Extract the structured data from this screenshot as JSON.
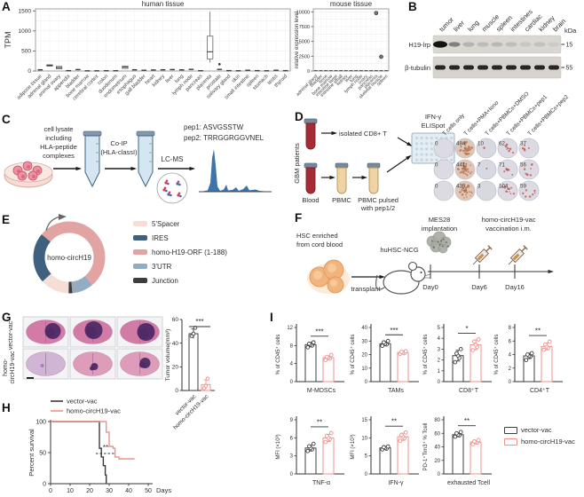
{
  "colors": {
    "salmon": "#F0908C",
    "black": "#3A3A3A",
    "ink": "#2E2E2E"
  },
  "panels": {
    "A": "A",
    "B": "B",
    "C": "C",
    "D": "D",
    "E": "E",
    "F": "F",
    "G": "G",
    "H": "H",
    "I": "I"
  },
  "panelA": {
    "human": {
      "title": "human tissue",
      "ylabel": "TPM",
      "ylim": [
        0,
        1550
      ],
      "yticks": [
        0,
        500,
        1000,
        1500
      ],
      "categories": [
        "adipose tissue",
        "adrenal gland",
        "animal ovary",
        "appendix",
        "bladder",
        "bone marrow",
        "cerebral cortex",
        "colon",
        "duodenum",
        "endometrium",
        "esophagus",
        "gall bladder",
        "heart",
        "kidney",
        "liver",
        "lung",
        "lymph node",
        "pancreas",
        "placenta",
        "prostate",
        "salivary gland",
        "skin",
        "small intestine",
        "spleen",
        "stomach",
        "testis",
        "thyroid"
      ],
      "medians": [
        30,
        140,
        85,
        8,
        35,
        4,
        4,
        6,
        6,
        95,
        30,
        18,
        25,
        30,
        35,
        28,
        40,
        6,
        480,
        40,
        8,
        5,
        18,
        8,
        5,
        18,
        8
      ],
      "boxes": {
        "adrenal gland": {
          "q1": 120,
          "q3": 155,
          "med": 140
        },
        "animal ovary": {
          "q1": 55,
          "q3": 115,
          "med": 85
        },
        "endometrium": {
          "q1": 65,
          "q3": 125,
          "med": 95
        },
        "placenta": {
          "q1": 300,
          "q3": 870,
          "med": 480,
          "wlow": 210,
          "whigh": 1480
        }
      },
      "outliers": {
        "prostate": 170
      }
    },
    "mouse": {
      "title": "mouse tissue",
      "ylabel": "relative expression level",
      "ylim": [
        0,
        10500
      ],
      "yticks": [
        0,
        2500,
        5000,
        7500,
        10000
      ],
      "categories": [
        "adrenal gland",
        "bladder",
        "bone",
        "bone marrow",
        "intestine large",
        "intestine small",
        "kidney",
        "liver",
        "lung",
        "lymph node",
        "ovary",
        "pancreas",
        "placenta",
        "skeletal muscle",
        "spleen"
      ],
      "baseline": 60,
      "dots": {
        "placenta": 9800,
        "skeletal muscle": 2400
      }
    }
  },
  "panelB": {
    "lanes": [
      "tumor",
      "liver",
      "lung",
      "muscle",
      "spleen",
      "intestines",
      "cardiac",
      "kidney",
      "brain"
    ],
    "rows": [
      {
        "name": "H19-lrp",
        "marker": "15"
      },
      {
        "name": "β-tubulin",
        "marker": "55"
      }
    ],
    "unit": "kDa",
    "h19_intensity": [
      1,
      0.45,
      0.18,
      0.14,
      0.15,
      0.12,
      0.08,
      0.1,
      0.06
    ]
  },
  "panelC": {
    "lysate_lines": [
      "cell lysate",
      "including",
      "HLA-peptide",
      "complexes"
    ],
    "coip_lines": [
      "Co-IP",
      "(HLA-classI)"
    ],
    "lcms": "LC-MS",
    "pep1": "pep1: ASVGSSTW",
    "pep2": "pep2: TRRGGRGGVNEL"
  },
  "panelD": {
    "side_label": "GBM patients",
    "blood": "Blood",
    "cd8": "isolated CD8+ T",
    "elispot_lines": [
      "IFN-γ",
      "ELISpot"
    ],
    "pbmc": "PBMC",
    "pbmc_pulsed_lines": [
      "PBMC pulsed",
      "with pep1/2"
    ],
    "well_columns": [
      "T cells only",
      "T cells+PMA+Iono",
      "T cells+PBMCs+DMSO",
      "T cells+PBMCs+pep1",
      "T cells+PBMCs+pep2"
    ],
    "well_counts": [
      [
        0,
        484,
        10,
        62,
        37
      ],
      [
        0,
        441,
        7,
        71,
        56
      ],
      [
        0,
        439,
        3,
        104,
        59
      ]
    ]
  },
  "panelE": {
    "center": "homo-circH19",
    "segments": [
      {
        "label": "5'Spacer",
        "color": "#F6DDD5",
        "start": 181,
        "end": 228
      },
      {
        "label": "IRES",
        "color": "#40617E",
        "start": 228,
        "end": 310
      },
      {
        "label": "homo-H19-ORF (1-188)",
        "color": "#E2A3A3",
        "start": 310,
        "end": 500
      },
      {
        "label": "3'UTR",
        "color": "#93ACC1",
        "start": 140,
        "end": 175
      },
      {
        "label": "Junction",
        "color": "#3D3D3D",
        "start": 175,
        "end": 181
      }
    ]
  },
  "panelF": {
    "hsc_lines": [
      "HSC enriched",
      "from cord blood"
    ],
    "transplant": "transplant",
    "mouse": "huHSC-NCG",
    "mes28_lines": [
      "MES28",
      "implantation"
    ],
    "vac_lines": [
      "homo-circH19-vac",
      "vaccination i.m."
    ],
    "days": [
      "Day0",
      "Day6",
      "Day16"
    ]
  },
  "panelG": {
    "row_labels": [
      "vector-vac",
      "homo-",
      "circH19-vac"
    ],
    "bar": {
      "ylabel": "Tumor volume(mm³)",
      "ylim": [
        0,
        60
      ],
      "yticks": [
        0,
        20,
        40,
        60
      ],
      "sig": "***",
      "groups": [
        {
          "name": "vector-vac",
          "mean": 48,
          "sd": 4,
          "dots": [
            46,
            48,
            53
          ]
        },
        {
          "name": "homo-circH19-vac",
          "mean": 5,
          "sd": 4,
          "dots": [
            2,
            4,
            10
          ]
        }
      ]
    }
  },
  "panelH": {
    "legend": [
      "vector-vac",
      "homo-circH19-vac"
    ],
    "ylabel": "Percent survival",
    "xlabel": "Days",
    "yticks": [
      0,
      50,
      100
    ],
    "xticks": [
      0,
      10,
      20,
      30,
      40,
      50
    ],
    "sig": "**",
    "series": [
      {
        "name": "vector-vac",
        "points": [
          [
            0,
            100
          ],
          [
            25,
            100
          ],
          [
            25,
            57
          ],
          [
            26,
            57
          ],
          [
            26,
            43
          ],
          [
            27,
            43
          ],
          [
            27,
            29
          ],
          [
            28,
            29
          ],
          [
            28,
            14
          ],
          [
            28.5,
            14
          ],
          [
            28.5,
            0
          ]
        ]
      },
      {
        "name": "homo-circH19-vac",
        "points": [
          [
            0,
            100
          ],
          [
            28.5,
            100
          ],
          [
            28.5,
            83
          ],
          [
            30,
            83
          ],
          [
            30,
            60
          ],
          [
            32,
            60
          ],
          [
            32,
            57
          ],
          [
            33,
            57
          ],
          [
            33,
            43
          ],
          [
            35,
            43
          ],
          [
            35,
            40
          ],
          [
            43,
            40
          ]
        ]
      }
    ]
  },
  "panelI": {
    "legend": [
      "vector-vac",
      "homo-circH19-vac"
    ],
    "charts": [
      {
        "xlabel": "M-MDSCs",
        "ylabel": "% of CD45⁺ cells",
        "ylim": [
          0,
          12
        ],
        "yticks": [
          0,
          4,
          8,
          12
        ],
        "sig": "***",
        "vector": {
          "mean": 8.2,
          "sd": 0.5,
          "dots": [
            7.6,
            8.0,
            8.2,
            8.4,
            8.7
          ]
        },
        "homo": {
          "mean": 5.3,
          "sd": 0.4,
          "dots": [
            4.8,
            5.1,
            5.3,
            5.5,
            5.9
          ]
        }
      },
      {
        "xlabel": "TAMs",
        "ylabel": "% of CD45⁺ cells",
        "ylim": [
          0,
          40
        ],
        "yticks": [
          0,
          10,
          20,
          30,
          40
        ],
        "sig": "***",
        "vector": {
          "mean": 28,
          "sd": 1.5,
          "dots": [
            26.5,
            27.5,
            28,
            29,
            30
          ]
        },
        "homo": {
          "mean": 21.5,
          "sd": 1,
          "dots": [
            20.5,
            21,
            21.5,
            22,
            22.5
          ]
        }
      },
      {
        "xlabel": "CD8⁺T",
        "ylabel": "% of CD45⁺ cells",
        "ylim": [
          0,
          5
        ],
        "yticks": [
          0,
          1,
          2,
          3,
          4,
          5
        ],
        "sig": "*",
        "vector": {
          "mean": 2.4,
          "sd": 0.5,
          "dots": [
            1.8,
            2.2,
            2.4,
            2.6,
            3.0
          ]
        },
        "homo": {
          "mean": 3.4,
          "sd": 0.45,
          "dots": [
            2.9,
            3.2,
            3.4,
            3.7,
            3.9
          ]
        }
      },
      {
        "xlabel": "CD4⁺T",
        "ylabel": "% of CD45⁺ cells",
        "ylim": [
          0,
          8
        ],
        "yticks": [
          0,
          2,
          4,
          6,
          8
        ],
        "sig": "**",
        "vector": {
          "mean": 3.8,
          "sd": 0.4,
          "dots": [
            3.2,
            3.7,
            3.8,
            4.0,
            4.2
          ]
        },
        "homo": {
          "mean": 5.2,
          "sd": 0.5,
          "dots": [
            4.7,
            5.0,
            5.2,
            5.5,
            5.9
          ]
        }
      },
      {
        "xlabel": "TNF-α",
        "ylabel": "MFI (×10³)",
        "ylim": [
          0,
          9
        ],
        "yticks": [
          0,
          3,
          6,
          9
        ],
        "sig": "**",
        "vector": {
          "mean": 4.3,
          "sd": 0.5,
          "dots": [
            3.8,
            4.1,
            4.3,
            4.6,
            5.0
          ]
        },
        "homo": {
          "mean": 6.0,
          "sd": 0.6,
          "dots": [
            5.3,
            5.8,
            6.0,
            6.3,
            6.8
          ]
        }
      },
      {
        "xlabel": "IFN-γ",
        "ylabel": "MFI (×10³)",
        "ylim": [
          0,
          15
        ],
        "yticks": [
          0,
          5,
          10,
          15
        ],
        "sig": "**",
        "vector": {
          "mean": 7.2,
          "sd": 0.4,
          "dots": [
            6.8,
            7.0,
            7.2,
            7.4,
            7.6
          ]
        },
        "homo": {
          "mean": 10.3,
          "sd": 1,
          "dots": [
            9.2,
            9.9,
            10.3,
            10.8,
            11.5
          ]
        }
      },
      {
        "xlabel": "exhausted Tcell",
        "ylabel": "PD-1⁺Tim3⁺ % Tcell",
        "ylim": [
          0,
          80
        ],
        "yticks": [
          0,
          20,
          40,
          60,
          80
        ],
        "sig": "**",
        "vector": {
          "mean": 58,
          "sd": 3,
          "dots": [
            55,
            57,
            58,
            60,
            62
          ]
        },
        "homo": {
          "mean": 47,
          "sd": 2.5,
          "dots": [
            44,
            46,
            47,
            48,
            50
          ]
        }
      }
    ]
  }
}
